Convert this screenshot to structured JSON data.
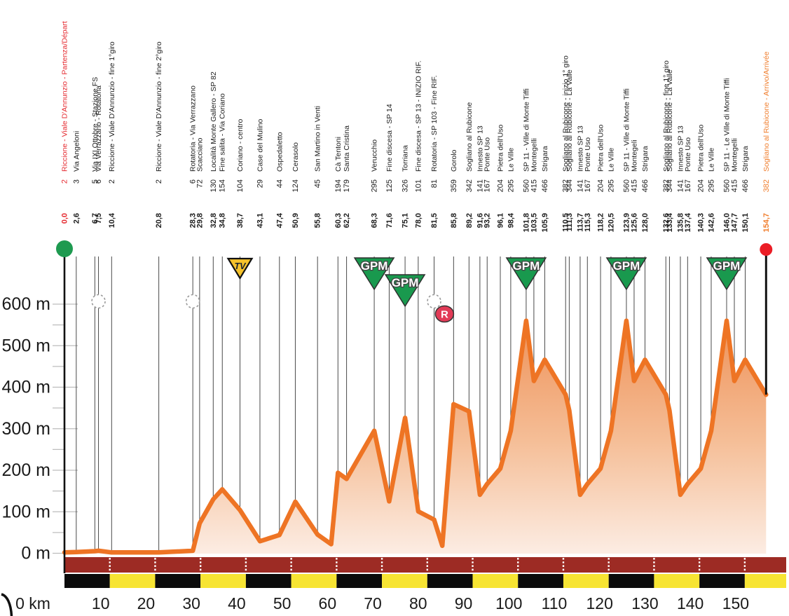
{
  "chart_data": {
    "type": "area",
    "description": "Cycling stage altimetry profile: Riccione - Sogliano al Rubicone, 154.7 km",
    "x_unit": "km",
    "y_unit": "m",
    "x_origin_label": "0  km",
    "x_ticks": [
      10,
      20,
      30,
      40,
      50,
      60,
      70,
      80,
      90,
      100,
      110,
      120,
      130,
      140,
      150
    ],
    "y_ticks": [
      0,
      100,
      200,
      300,
      400,
      500,
      600
    ],
    "y_tick_suffix": " m",
    "ylim": [
      0,
      650
    ],
    "xlim": [
      0,
      159
    ],
    "waypoints": [
      {
        "name": "Riccione - Viale D'Annunzio - Partenza/Départ",
        "alt": 2,
        "km": 0.0,
        "km_display": "0,0",
        "color": "red"
      },
      {
        "name": "Via Angeloni",
        "alt": 3,
        "km": 2.6,
        "km_display": "2,6",
        "color": "black"
      },
      {
        "name": "Via IXI Ottobre - Stazione FS",
        "alt": 5,
        "km": 6.7,
        "km_display": "6,7",
        "color": "black"
      },
      {
        "name": "Via Verrazzano - Rotatoria",
        "alt": 6,
        "km": 7.5,
        "km_display": "7,5",
        "color": "black"
      },
      {
        "name": "Riccione - Viale D'Annunzio - fine 1°giro",
        "alt": 2,
        "km": 10.4,
        "km_display": "10,4",
        "color": "black"
      },
      {
        "name": "Riccione - Viale D'Annunzio - fine 2°giro",
        "alt": 2,
        "km": 20.8,
        "km_display": "20,8",
        "color": "black"
      },
      {
        "name": "Rotatoria - Via Verrazzano",
        "alt": 6,
        "km": 28.3,
        "km_display": "28,3",
        "color": "black"
      },
      {
        "name": "Scacciano",
        "alt": 72,
        "km": 29.8,
        "km_display": "29,8",
        "color": "black"
      },
      {
        "name": "Località Monte Gallero - SP 82",
        "alt": 130,
        "km": 32.8,
        "km_display": "32,8",
        "color": "black"
      },
      {
        "name": "Fine salita - Via Coriano",
        "alt": 154,
        "km": 34.8,
        "km_display": "34,8",
        "color": "black"
      },
      {
        "name": "Coriano - centro",
        "alt": 104,
        "km": 38.7,
        "km_display": "38,7",
        "color": "black"
      },
      {
        "name": "Case del Mulino",
        "alt": 29,
        "km": 43.1,
        "km_display": "43,1",
        "color": "black"
      },
      {
        "name": "Ospedaletto",
        "alt": 44,
        "km": 47.4,
        "km_display": "47,4",
        "color": "black"
      },
      {
        "name": "Cerasolo",
        "alt": 124,
        "km": 50.9,
        "km_display": "50,9",
        "color": "black"
      },
      {
        "name": "San Martino in Venti",
        "alt": 45,
        "km": 55.8,
        "km_display": "55,8",
        "color": "black"
      },
      {
        "name": "Cà Tentoni",
        "alt": 194,
        "km": 60.3,
        "km_display": "60,3",
        "color": "black"
      },
      {
        "name": "Santa Cristina",
        "alt": 179,
        "km": 62.2,
        "km_display": "62,2",
        "color": "black"
      },
      {
        "name": "Verucchio",
        "alt": 295,
        "km": 68.3,
        "km_display": "68,3",
        "color": "black"
      },
      {
        "name": "Fine discesa - SP 14",
        "alt": 125,
        "km": 71.6,
        "km_display": "71,6",
        "color": "black"
      },
      {
        "name": "Torriana",
        "alt": 326,
        "km": 75.1,
        "km_display": "75,1",
        "color": "black"
      },
      {
        "name": "Fine discesa - SP 13 - INIZIO RIF.",
        "alt": 101,
        "km": 78.0,
        "km_display": "78,0",
        "color": "black"
      },
      {
        "name": "Rotatoria - SP 103 - Fine RIF.",
        "alt": 81,
        "km": 81.5,
        "km_display": "81,5",
        "color": "black"
      },
      {
        "name": "Gorolo",
        "alt": 359,
        "km": 85.8,
        "km_display": "85,8",
        "color": "black"
      },
      {
        "name": "Sogliano al Rubicone",
        "alt": 342,
        "km": 89.2,
        "km_display": "89,2",
        "color": "black"
      },
      {
        "name": "Innesto SP 13",
        "alt": 141,
        "km": 91.6,
        "km_display": "91,6",
        "color": "black"
      },
      {
        "name": "Ponte Uso",
        "alt": 167,
        "km": 93.2,
        "km_display": "93,2",
        "color": "black"
      },
      {
        "name": "Pietra dell'Uso",
        "alt": 204,
        "km": 96.1,
        "km_display": "96,1",
        "color": "black"
      },
      {
        "name": "Le Ville",
        "alt": 295,
        "km": 98.4,
        "km_display": "98,4",
        "color": "black"
      },
      {
        "name": "SP 11 - Ville di Monte Tiffi",
        "alt": 560,
        "km": 101.8,
        "km_display": "101,8",
        "color": "black"
      },
      {
        "name": "Montegelli",
        "alt": 415,
        "km": 103.5,
        "km_display": "103,5",
        "color": "black"
      },
      {
        "name": "Strigara",
        "alt": 466,
        "km": 105.9,
        "km_display": "105,9",
        "color": "black"
      },
      {
        "name": "Sogliano al Rubicone - inizio 1° giro",
        "alt": 382,
        "km": 110.5,
        "km_display": "110,5",
        "color": "black"
      },
      {
        "name": "Sogliano al Rubicone - La Valle",
        "alt": 344,
        "km": 111.3,
        "km_display": "111,3",
        "color": "black"
      },
      {
        "name": "Innesto SP 13",
        "alt": 141,
        "km": 113.7,
        "km_display": "113,7",
        "color": "black"
      },
      {
        "name": "Ponte Uso",
        "alt": 167,
        "km": 115.3,
        "km_display": "115,3",
        "color": "black"
      },
      {
        "name": "Pietra dell'Uso",
        "alt": 204,
        "km": 118.2,
        "km_display": "118,2",
        "color": "black"
      },
      {
        "name": "Le Ville",
        "alt": 295,
        "km": 120.5,
        "km_display": "120,5",
        "color": "black"
      },
      {
        "name": "SP 11 - Ville di Monte Tiffi",
        "alt": 560,
        "km": 123.9,
        "km_display": "123,9",
        "color": "black"
      },
      {
        "name": "Montegeli",
        "alt": 415,
        "km": 125.6,
        "km_display": "125,6",
        "color": "black"
      },
      {
        "name": "Strigara",
        "alt": 466,
        "km": 128.0,
        "km_display": "128,0",
        "color": "black"
      },
      {
        "name": "Sogliano al Rubicone - fine 1° giro",
        "alt": 382,
        "km": 132.6,
        "km_display": "132,6",
        "color": "black"
      },
      {
        "name": "Sogliano al Rubicone - La Valle",
        "alt": 344,
        "km": 133.4,
        "km_display": "133,4",
        "color": "black"
      },
      {
        "name": "Innesto SP 13",
        "alt": 141,
        "km": 135.8,
        "km_display": "135,8",
        "color": "black"
      },
      {
        "name": "Ponte Uso",
        "alt": 167,
        "km": 137.4,
        "km_display": "137,4",
        "color": "black"
      },
      {
        "name": "Pietra dell'Uso",
        "alt": 204,
        "km": 140.3,
        "km_display": "140,3",
        "color": "black"
      },
      {
        "name": "Le Ville",
        "alt": 295,
        "km": 142.6,
        "km_display": "142,6",
        "color": "black"
      },
      {
        "name": "SP 11 - Le Ville di Monte Tiffi",
        "alt": 560,
        "km": 146.0,
        "km_display": "146,0",
        "color": "black"
      },
      {
        "name": "Montegelli",
        "alt": 415,
        "km": 147.7,
        "km_display": "147,7",
        "color": "black"
      },
      {
        "name": "Strigara",
        "alt": 466,
        "km": 150.1,
        "km_display": "150,1",
        "color": "black"
      },
      {
        "name": "Sogliano al Rubicone - Arrivo/Arrivée",
        "alt": 382,
        "km": 154.7,
        "km_display": "154,7",
        "color": "orange"
      }
    ],
    "profile_extra_points": [
      [
        58.8,
        22
      ],
      [
        83.3,
        18
      ]
    ],
    "markers": {
      "gpm": {
        "label": "GPM",
        "points": [
          {
            "km": 68.3,
            "row": 0
          },
          {
            "km": 75.1,
            "row": 1
          },
          {
            "km": 101.8,
            "row": 0
          },
          {
            "km": 123.9,
            "row": 0
          },
          {
            "km": 146.0,
            "row": 0
          }
        ]
      },
      "sprint": {
        "label": "TV",
        "km": 38.7
      },
      "feed_zone": {
        "label": "R",
        "km": 83.8
      },
      "roundabouts_km": [
        7.5,
        28.3,
        81.5
      ]
    },
    "colors": {
      "profile_stroke": "#EE7424",
      "area_top": "#ED8A4E",
      "area_mid": "#F5BE97",
      "area_bottom": "#FCEDE4",
      "gpm_green": "#19994E",
      "sprint_yellow": "#F5C22B",
      "feed_red": "#E23B57",
      "start_dot_green": "#1E9A50",
      "finish_dot_red": "#EB1D25",
      "label_red": "#E52A30",
      "label_orange": "#F07E2D",
      "label_black": "#1C1C1C",
      "bar_dark_red": "#9D2B24",
      "bar_yellow": "#F7E433",
      "bar_black": "#0B0B0B",
      "waypoint_line": "#4A4A4A",
      "tick_gray": "#BDBDBD",
      "axis_text": "#1A1A1A"
    }
  }
}
